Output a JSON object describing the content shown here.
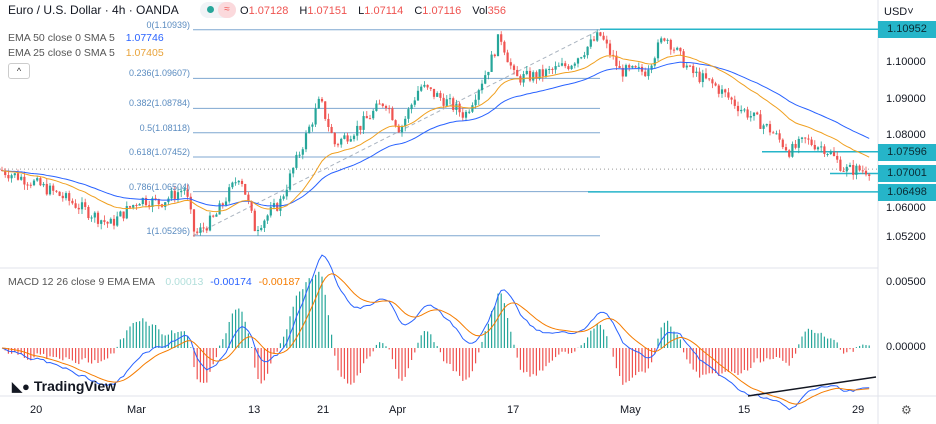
{
  "header": {
    "symbol_title": "Euro / U.S. Dollar · 4h · OANDA",
    "ohlc": {
      "o_label": "O",
      "o": "1.07128",
      "h_label": "H",
      "h": "1.07151",
      "l_label": "L",
      "l": "1.07114",
      "c_label": "C",
      "c": "1.07116",
      "vol_label": "Vol",
      "vol": "356"
    }
  },
  "indicators": [
    {
      "label": "EMA 50 close 0 SMA 5",
      "value": "1.07746",
      "color": "#2962ff"
    },
    {
      "label": "EMA 25 close 0 SMA 5",
      "value": "1.07405",
      "color": "#f0a020"
    }
  ],
  "collapse_icon": "chevron-up-icon",
  "collapse_glyph": "^",
  "currency": "USD",
  "currency_caret": "˅",
  "price_axis": [
    "1.10000",
    "1.09000",
    "1.08000",
    "1.06000",
    "1.05200"
  ],
  "price_labels": [
    {
      "value": "1.10952",
      "price": 1.10952
    },
    {
      "value": "1.07596",
      "price": 1.07596
    },
    {
      "value": "1.07001",
      "price": 1.07001
    },
    {
      "value": "1.06498",
      "price": 1.06498
    }
  ],
  "fib_levels": [
    {
      "label": "0(1.10939)",
      "price": 1.10939
    },
    {
      "label": "0.236(1.09607)",
      "price": 1.09607
    },
    {
      "label": "0.382(1.08784)",
      "price": 1.08784
    },
    {
      "label": "0.5(1.08118)",
      "price": 1.08118
    },
    {
      "label": "0.618(1.07452)",
      "price": 1.07452
    },
    {
      "label": "0.786(1.06504)",
      "price": 1.06504
    },
    {
      "label": "1(1.05296)",
      "price": 1.05296
    }
  ],
  "macd": {
    "label": "MACD 12 26 close 9 EMA EMA",
    "hist": "0.00013",
    "macd": "-0.00174",
    "signal": "-0.00187",
    "axis": [
      "0.00500",
      "0.00000"
    ]
  },
  "time_axis": [
    "20",
    "Mar",
    "13",
    "21",
    "Apr",
    "17",
    "May",
    "15",
    "29"
  ],
  "branding": "TradingView",
  "colors": {
    "up": "#26a69a",
    "down": "#ef5350",
    "ema50": "#2962ff",
    "ema25": "#f0a020",
    "level": "#26b5c9"
  }
}
